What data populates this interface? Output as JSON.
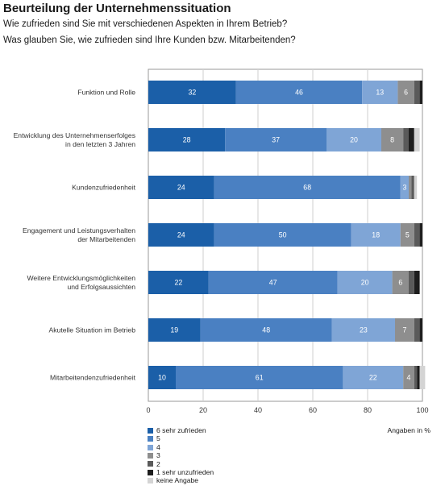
{
  "header": {
    "title": "Beurteilung der Unternehmenssituation",
    "subtitle_1": "Wie zufrieden sind Sie mit verschiedenen Aspekten in Ihrem Betrieb?",
    "subtitle_2": "Was glauben Sie, wie zufrieden sind Ihre Kunden bzw. Mitarbeitenden?"
  },
  "chart_data": {
    "type": "bar",
    "orientation": "horizontal",
    "stacked": true,
    "unit_label": "Angaben in %",
    "xlim": [
      0,
      100
    ],
    "x_ticks": [
      0,
      20,
      40,
      60,
      80,
      100
    ],
    "grid": true,
    "legend_position": "bottom-left",
    "categories": [
      [
        "Funktion und Rolle"
      ],
      [
        "Entwicklung des Unternehmenserfolges",
        "in den letzten 3 Jahren"
      ],
      [
        "Kundenzufriedenheit"
      ],
      [
        "Engagement und Leistungsverhalten",
        "der Mitarbeitenden"
      ],
      [
        "Weitere Entwicklungsmöglichkeiten",
        "und Erfolgsaussichten"
      ],
      [
        "Akutelle Situation im Betrieb"
      ],
      [
        "Mitarbeitendenzufriedenheit"
      ]
    ],
    "series": [
      {
        "name": "6 sehr zufrieden",
        "color": "#1b5fa8",
        "values": [
          32,
          28,
          24,
          24,
          22,
          19,
          10
        ]
      },
      {
        "name": "5",
        "color": "#4a80c2",
        "values": [
          46,
          37,
          68,
          50,
          47,
          48,
          61
        ]
      },
      {
        "name": "4",
        "color": "#7fa5d6",
        "values": [
          13,
          20,
          3,
          18,
          20,
          23,
          22
        ]
      },
      {
        "name": "3",
        "color": "#8e8e8e",
        "values": [
          6,
          8,
          1,
          5,
          6,
          7,
          4
        ]
      },
      {
        "name": "2",
        "color": "#5a5a5a",
        "values": [
          2,
          2,
          1,
          2,
          2,
          2,
          1
        ]
      },
      {
        "name": "1 sehr unzufrieden",
        "color": "#1e1e1e",
        "values": [
          1,
          2,
          0,
          1,
          2,
          1,
          1
        ]
      },
      {
        "name": "keine Angabe",
        "color": "#d4d4d4",
        "values": [
          0,
          2,
          1,
          0,
          0,
          0,
          2
        ]
      }
    ],
    "data_labels_min": 3
  }
}
